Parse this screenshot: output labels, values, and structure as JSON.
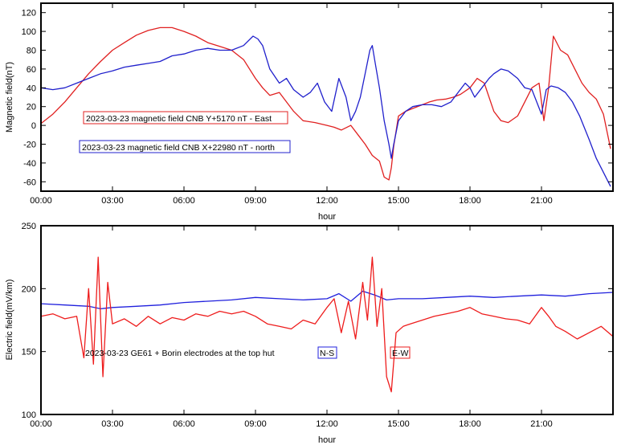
{
  "chart_data": [
    {
      "type": "line",
      "xlabel": "hour",
      "ylabel": "Magnetic field(nT)",
      "xlim": [
        0,
        24
      ],
      "ylim": [
        -70,
        130
      ],
      "xticks": [
        0,
        3,
        6,
        9,
        12,
        15,
        18,
        21
      ],
      "xtick_labels": [
        "00:00",
        "03:00",
        "06:00",
        "09:00",
        "12:00",
        "15:00",
        "18:00",
        "21:00"
      ],
      "yticks": [
        -60,
        -40,
        -20,
        0,
        20,
        40,
        60,
        80,
        100,
        120
      ],
      "ytick_labels": [
        "-60",
        "-40",
        "-20",
        "0",
        "20",
        "40",
        "60",
        "80",
        "100",
        "120"
      ],
      "grid": false,
      "series": [
        {
          "name": "2023-03-23 magnetic field CNB Y+5170 nT - East",
          "color": "#e02020",
          "x": [
            0,
            0.5,
            1,
            1.5,
            2,
            2.5,
            3,
            3.5,
            4,
            4.5,
            5,
            5.5,
            6,
            6.5,
            7,
            7.5,
            8,
            8.5,
            9,
            9.3,
            9.6,
            10,
            10.3,
            10.6,
            11,
            11.5,
            12,
            12.3,
            12.6,
            13,
            13.3,
            13.6,
            13.9,
            14.2,
            14.4,
            14.6,
            14.7,
            14.8,
            15,
            15.3,
            15.6,
            16,
            16.3,
            16.6,
            17,
            17.3,
            17.6,
            18,
            18.3,
            18.6,
            19,
            19.3,
            19.6,
            20,
            20.3,
            20.6,
            20.9,
            21.1,
            21.3,
            21.5,
            21.8,
            22.1,
            22.4,
            22.7,
            23,
            23.3,
            23.6,
            23.9
          ],
          "y": [
            2,
            12,
            25,
            40,
            55,
            68,
            80,
            88,
            96,
            101,
            104,
            104,
            100,
            95,
            88,
            84,
            80,
            70,
            50,
            40,
            32,
            35,
            25,
            15,
            5,
            3,
            0,
            -2,
            -5,
            0,
            -10,
            -20,
            -32,
            -38,
            -55,
            -58,
            -45,
            -22,
            10,
            15,
            18,
            22,
            25,
            27,
            28,
            30,
            33,
            40,
            50,
            45,
            15,
            5,
            3,
            10,
            25,
            40,
            45,
            5,
            40,
            95,
            80,
            75,
            60,
            45,
            35,
            28,
            12,
            -25
          ]
        },
        {
          "name": "2023-03-23 magnetic field CNB X+22980 nT - north",
          "color": "#2020cc",
          "x": [
            0,
            0.5,
            1,
            1.5,
            2,
            2.5,
            3,
            3.5,
            4,
            4.5,
            5,
            5.5,
            6,
            6.5,
            7,
            7.5,
            8,
            8.5,
            8.9,
            9.1,
            9.3,
            9.6,
            10,
            10.3,
            10.6,
            11,
            11.3,
            11.6,
            11.9,
            12.2,
            12.5,
            12.8,
            13,
            13.2,
            13.4,
            13.6,
            13.8,
            13.9,
            14,
            14.2,
            14.4,
            14.6,
            14.7,
            14.8,
            15,
            15.3,
            15.6,
            16,
            16.4,
            16.8,
            17.2,
            17.5,
            17.8,
            18,
            18.2,
            18.5,
            18.8,
            19,
            19.3,
            19.6,
            20,
            20.3,
            20.6,
            21,
            21.2,
            21.4,
            21.7,
            22,
            22.3,
            22.6,
            23,
            23.3,
            23.6,
            23.9
          ],
          "y": [
            40,
            38,
            40,
            45,
            50,
            55,
            58,
            62,
            64,
            66,
            68,
            74,
            76,
            80,
            82,
            80,
            80,
            85,
            95,
            92,
            85,
            60,
            45,
            50,
            38,
            30,
            35,
            45,
            25,
            15,
            50,
            30,
            5,
            15,
            30,
            55,
            80,
            85,
            70,
            40,
            5,
            -20,
            -35,
            -20,
            5,
            15,
            20,
            22,
            22,
            20,
            25,
            35,
            45,
            40,
            30,
            40,
            50,
            55,
            60,
            58,
            50,
            40,
            38,
            12,
            38,
            42,
            40,
            35,
            25,
            10,
            -15,
            -35,
            -50,
            -65
          ]
        }
      ],
      "legend": [
        {
          "label": "2023-03-23 magnetic field CNB Y+5170 nT - East",
          "color": "#e02020"
        },
        {
          "label": "2023-03-23 magnetic field CNB X+22980 nT - north",
          "color": "#2020cc"
        }
      ]
    },
    {
      "type": "line",
      "xlabel": "hour",
      "ylabel": "Electric field(mV/km)",
      "xlim": [
        0,
        24
      ],
      "ylim": [
        100,
        250
      ],
      "xticks": [
        0,
        3,
        6,
        9,
        12,
        15,
        18,
        21
      ],
      "xtick_labels": [
        "00:00",
        "03:00",
        "06:00",
        "09:00",
        "12:00",
        "15:00",
        "18:00",
        "21:00"
      ],
      "yticks": [
        100,
        150,
        200,
        250
      ],
      "ytick_labels": [
        "100",
        "150",
        "200",
        "250"
      ],
      "grid": false,
      "series": [
        {
          "name": "N-S",
          "color": "#2020dd",
          "x": [
            0,
            1,
            2,
            2.5,
            3,
            4,
            5,
            6,
            7,
            8,
            9,
            10,
            11,
            12,
            12.5,
            13,
            13.5,
            14,
            14.5,
            15,
            16,
            17,
            18,
            19,
            20,
            21,
            22,
            23,
            24
          ],
          "y": [
            188,
            187,
            186,
            184,
            185,
            186,
            187,
            189,
            190,
            191,
            193,
            192,
            191,
            192,
            196,
            190,
            198,
            195,
            191,
            192,
            192,
            193,
            194,
            193,
            194,
            195,
            194,
            196,
            197
          ]
        },
        {
          "name": "E-W",
          "color": "#ee1c1c",
          "x": [
            0,
            0.5,
            1,
            1.5,
            1.8,
            2.0,
            2.2,
            2.4,
            2.6,
            2.8,
            3,
            3.5,
            4,
            4.5,
            5,
            5.5,
            6,
            6.5,
            7,
            7.5,
            8,
            8.5,
            9,
            9.5,
            10,
            10.5,
            11,
            11.5,
            12,
            12.3,
            12.6,
            12.9,
            13.2,
            13.5,
            13.7,
            13.9,
            14.1,
            14.3,
            14.5,
            14.7,
            14.9,
            15.2,
            15.5,
            16,
            16.5,
            17,
            17.5,
            18,
            18.5,
            19,
            19.5,
            20,
            20.5,
            21,
            21.3,
            21.6,
            22,
            22.5,
            23,
            23.5,
            24
          ],
          "y": [
            178,
            180,
            176,
            178,
            145,
            200,
            140,
            225,
            130,
            205,
            172,
            176,
            170,
            178,
            172,
            177,
            175,
            180,
            178,
            182,
            180,
            182,
            178,
            172,
            170,
            168,
            175,
            172,
            185,
            192,
            165,
            190,
            160,
            205,
            175,
            225,
            170,
            200,
            130,
            118,
            165,
            170,
            172,
            175,
            178,
            180,
            182,
            185,
            180,
            178,
            176,
            175,
            172,
            185,
            178,
            170,
            166,
            160,
            165,
            170,
            162
          ]
        }
      ],
      "annotation": "2023-03-23 GE61 + Borin electrodes at the top hut",
      "legend": [
        {
          "label": "N-S",
          "color": "#2020dd"
        },
        {
          "label": "E-W",
          "color": "#ee1c1c"
        }
      ]
    }
  ]
}
